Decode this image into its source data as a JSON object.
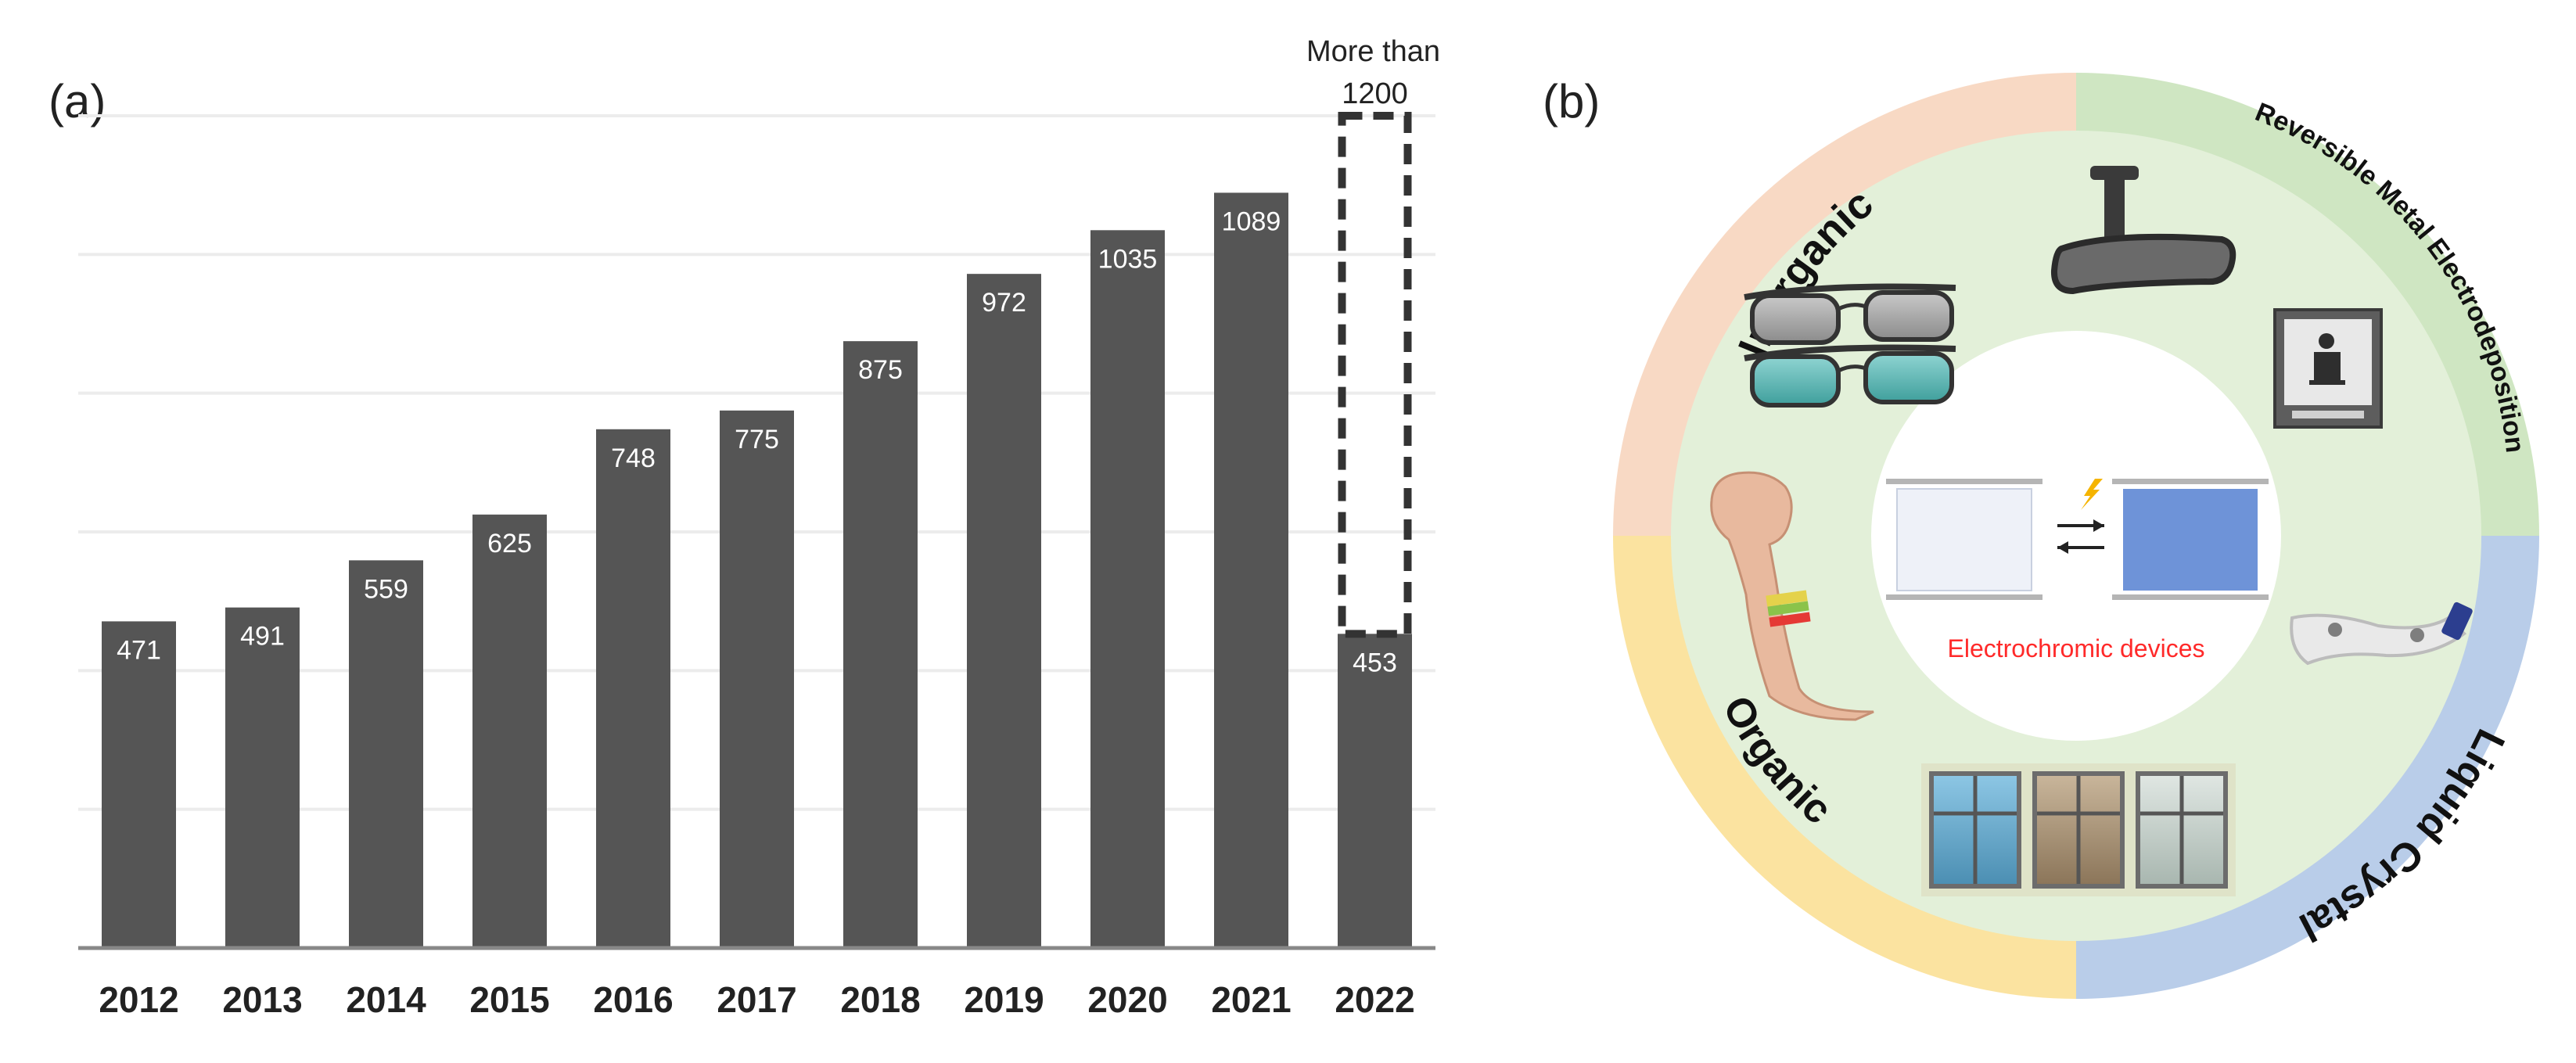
{
  "panel_a_label": "(a)",
  "panel_b_label": "(b)",
  "chart_data": {
    "type": "bar",
    "title": "",
    "xlabel": "",
    "ylabel": "",
    "ylim": [
      0,
      1200
    ],
    "grid": true,
    "categories": [
      "2012",
      "2013",
      "2014",
      "2015",
      "2016",
      "2017",
      "2018",
      "2019",
      "2020",
      "2021",
      "2022"
    ],
    "values": [
      471,
      491,
      559,
      625,
      748,
      775,
      875,
      972,
      1035,
      1089,
      453
    ],
    "data_labels": [
      "471",
      "491",
      "559",
      "625",
      "748",
      "775",
      "875",
      "972",
      "1035",
      "1089",
      "453"
    ],
    "projection": {
      "category": "2022",
      "value": 1200,
      "annotation_line1": "More than",
      "annotation_line2": "1200"
    },
    "bar_color": "#555555"
  },
  "diagram": {
    "center_label": "Electrochromic devices",
    "center_label_color": "#ff2a2a",
    "segments": [
      {
        "name": "Inorganic",
        "color": "#f8d9c4"
      },
      {
        "name": "Reversible Metal Electrodeposition",
        "color": "#cfe6c2"
      },
      {
        "name": "Liquid Crystal",
        "color": "#b9cde9"
      },
      {
        "name": "Organic",
        "color": "#fbe3a0"
      }
    ],
    "inner_ring_color": "#e3f0d9",
    "cell_bleached_color": "#eef1f8",
    "cell_colored_color": "#6e93d8"
  }
}
